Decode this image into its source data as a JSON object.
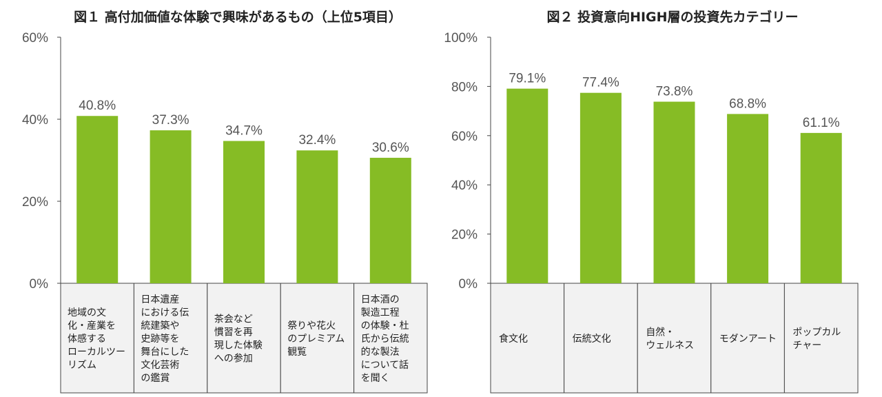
{
  "colors": {
    "bar": "#86bc25",
    "axis": "#444444",
    "cell_fill": "#f2f2f2"
  },
  "chart_data": [
    {
      "type": "bar",
      "title": "図１ 高付加価値な体験で興味があるもの（上位5項目）",
      "xlabel": "",
      "ylabel": "",
      "ylim": [
        0,
        60
      ],
      "yticks": [
        "0%",
        "20%",
        "40%",
        "60%"
      ],
      "categories": [
        [
          "地域の文",
          "化・産業を",
          "体感する",
          "ローカルツー",
          "リズム"
        ],
        [
          "日本遺産",
          "における伝",
          "統建築や",
          "史跡等を",
          "舞台にした",
          "文化芸術",
          "の鑑賞"
        ],
        [
          "茶会など",
          "慣習を再",
          "現した体験",
          "への参加"
        ],
        [
          "祭りや花火",
          "のプレミアム",
          "観覧"
        ],
        [
          "日本酒の",
          "製造工程",
          "の体験・杜",
          "氏から伝統",
          "的な製法",
          "について話",
          "を聞く"
        ]
      ],
      "values": [
        40.8,
        37.3,
        34.7,
        32.4,
        30.6
      ],
      "value_labels": [
        "40.8%",
        "37.3%",
        "34.7%",
        "32.4%",
        "30.6%"
      ],
      "grid": false
    },
    {
      "type": "bar",
      "title": "図２ 投資意向HIGH層の投資先カテゴリー",
      "xlabel": "",
      "ylabel": "",
      "ylim": [
        0,
        100
      ],
      "yticks": [
        "0%",
        "20%",
        "40%",
        "60%",
        "80%",
        "100%"
      ],
      "categories": [
        [
          "食文化"
        ],
        [
          "伝統文化"
        ],
        [
          "自然・",
          "ウェルネス"
        ],
        [
          "モダンアート"
        ],
        [
          "ポップカル",
          "チャー"
        ]
      ],
      "values": [
        79.1,
        77.4,
        73.8,
        68.8,
        61.1
      ],
      "value_labels": [
        "79.1%",
        "77.4%",
        "73.8%",
        "68.8%",
        "61.1%"
      ],
      "grid": false
    }
  ]
}
